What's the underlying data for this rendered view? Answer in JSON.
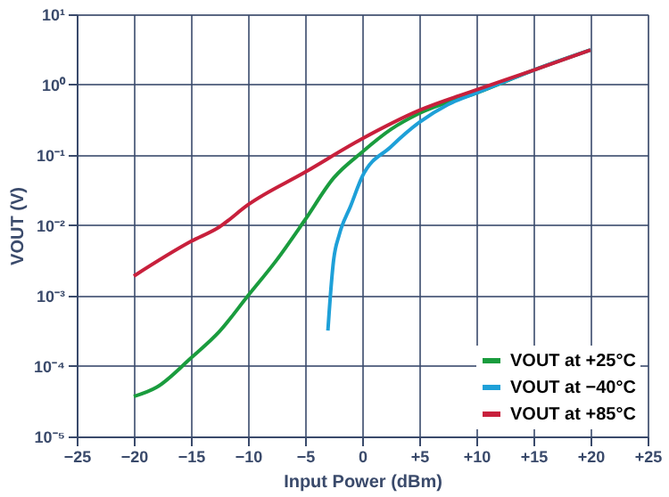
{
  "chart_data": {
    "type": "line",
    "xlabel": "Input Power (dBm)",
    "ylabel": "VOUT (V)",
    "log": "y",
    "grid": true,
    "legend": "bottom right",
    "line_style": "solid",
    "marker": "none",
    "xlim": [
      -25,
      25
    ],
    "xticks": [
      {
        "value": -25,
        "label": "−25"
      },
      {
        "value": -20,
        "label": "−20"
      },
      {
        "value": -15,
        "label": "−15"
      },
      {
        "value": -10,
        "label": "−10"
      },
      {
        "value": -5,
        "label": "−5"
      },
      0,
      {
        "value": 5,
        "label": "+5"
      },
      {
        "value": 10,
        "label": "+10"
      },
      {
        "value": 15,
        "label": "+15"
      },
      {
        "value": 20,
        "label": "+20"
      },
      {
        "value": 25,
        "label": "+25"
      }
    ],
    "ylim": [
      1e-05,
      10
    ],
    "yticks": [
      {
        "value": 1e-05,
        "label": "10⁻⁵"
      },
      {
        "value": 0.0001,
        "label": "10⁻⁴"
      },
      {
        "value": 0.001,
        "label": "10⁻³"
      },
      {
        "value": 0.01,
        "label": "10⁻²"
      },
      {
        "value": 0.1,
        "label": "10⁻¹"
      },
      {
        "value": 1,
        "label": "10⁰"
      },
      {
        "value": 10,
        "label": "10¹"
      }
    ],
    "series": [
      {
        "name": "VOUT at +25°C",
        "color": "#1a9c3e",
        "x": [
          -20,
          -18,
          -15,
          -12.5,
          -10,
          -7.5,
          -5,
          -2.5,
          0,
          2.5,
          5,
          10,
          15,
          20
        ],
        "values": [
          3.7e-05,
          5e-05,
          0.00013,
          0.00031,
          0.001,
          0.0032,
          0.012,
          0.047,
          0.11,
          0.23,
          0.39,
          0.76,
          1.6,
          3.1
        ]
      },
      {
        "name": "VOUT at −40°C",
        "color": "#1ea0d8",
        "x": [
          -3,
          -2.9,
          -2.5,
          -2,
          -1,
          0,
          2.5,
          5,
          7.5,
          10,
          15,
          20
        ],
        "values": [
          0.00032,
          0.00055,
          0.0032,
          0.0074,
          0.019,
          0.049,
          0.13,
          0.29,
          0.52,
          0.76,
          1.6,
          3.1
        ]
      },
      {
        "name": "VOUT at +85°C",
        "color": "#c8203c",
        "x": [
          -20,
          -15,
          -12.5,
          -10,
          -5,
          0,
          5,
          10,
          15,
          20
        ],
        "values": [
          0.0019,
          0.0059,
          0.0095,
          0.0196,
          0.057,
          0.17,
          0.43,
          0.84,
          1.6,
          3.1
        ]
      }
    ]
  }
}
